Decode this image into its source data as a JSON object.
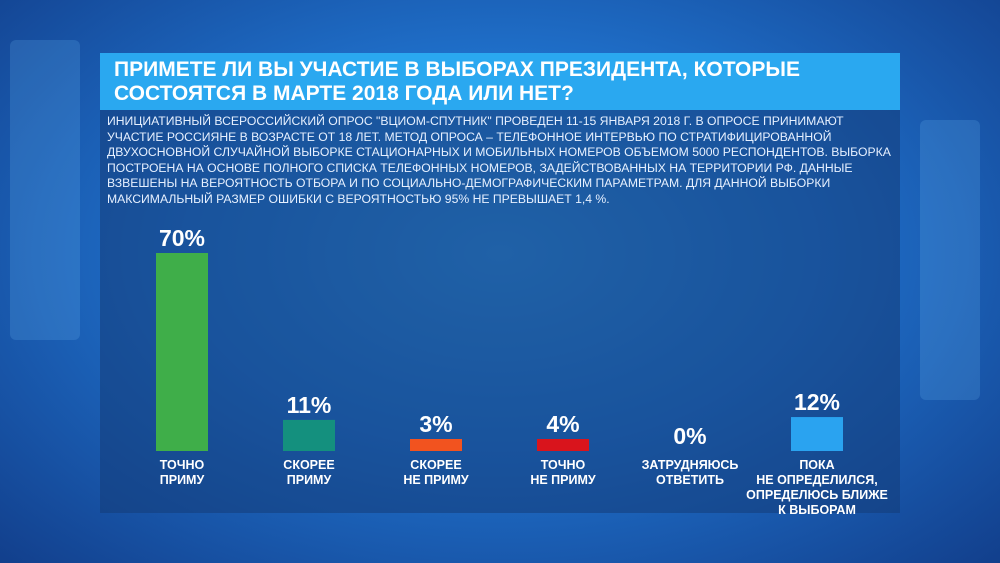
{
  "title": "ПРИМЕТЕ ЛИ ВЫ УЧАСТИЕ В ВЫБОРАХ ПРЕЗИДЕНТА, КОТОРЫЕ СОСТОЯТСЯ В МАРТЕ 2018 ГОДА ИЛИ НЕТ?",
  "description": "Инициативный всероссийский опрос \"ВЦИОМ-Спутник\" проведен 11-15 января 2018 г. В опросе принимают участие россияне в возрасте от 18 лет. Метод опроса – телефонное интервью по стратифицированной двухосновной случайной выборке стационарных и мобильных номеров объемом 5000 респондентов. Выборка построена на основе полного списка телефонных номеров, задействованных на территории РФ. Данные взвешены на вероятность отбора и по социально-демографическим параметрам. Для данной выборки максимальный размер ошибки с вероятностью 95% не превышает 1,4 %.",
  "chart_data": {
    "type": "bar",
    "title": "ПРИМЕТЕ ЛИ ВЫ УЧАСТИЕ В ВЫБОРАХ ПРЕЗИДЕНТА, КОТОРЫЕ СОСТОЯТСЯ В МАРТЕ 2018 ГОДА ИЛИ НЕТ?",
    "categories": [
      "ТОЧНО\nПРИМУ",
      "СКОРЕЕ\nПРИМУ",
      "СКОРЕЕ\nНЕ ПРИМУ",
      "ТОЧНО\nНЕ ПРИМУ",
      "ЗАТРУДНЯЮСЬ\nОТВЕТИТЬ",
      "ПОКА\nНЕ ОПРЕДЕЛИЛСЯ,\nОПРЕДЕЛЮСЬ БЛИЖЕ\nК ВЫБОРАМ"
    ],
    "values": [
      70,
      11,
      3,
      4,
      0,
      12
    ],
    "value_labels": [
      "70%",
      "11%",
      "3%",
      "4%",
      "0%",
      "12%"
    ],
    "colors": [
      "#3fae49",
      "#14907e",
      "#f2531f",
      "#d9141c",
      "#1e8ad8",
      "#2aa3f0"
    ],
    "ylim": [
      0,
      70
    ],
    "xlabel": "",
    "ylabel": "",
    "grid": false,
    "legend": "none"
  }
}
